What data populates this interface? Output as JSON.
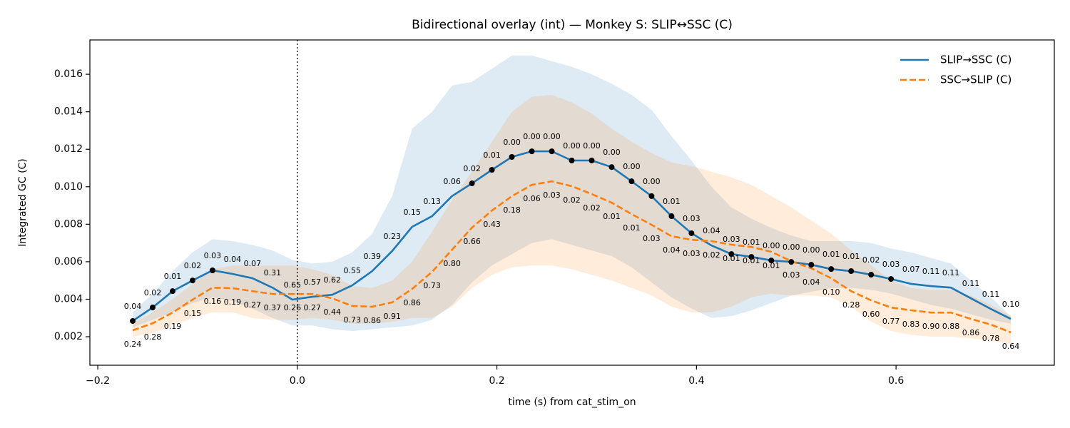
{
  "chart_data": {
    "type": "line",
    "title": "Bidirectional overlay (int) — Monkey S: SLIP↔SSC (C)",
    "xlabel": "time (s) from cat_stim_on",
    "ylabel": "Integrated GC (C)",
    "x": [
      -0.165,
      -0.145,
      -0.125,
      -0.105,
      -0.085,
      -0.065,
      -0.045,
      -0.025,
      -0.005,
      0.015,
      0.035,
      0.055,
      0.075,
      0.095,
      0.115,
      0.135,
      0.155,
      0.175,
      0.195,
      0.215,
      0.235,
      0.255,
      0.275,
      0.295,
      0.315,
      0.335,
      0.355,
      0.375,
      0.395,
      0.415,
      0.435,
      0.455,
      0.475,
      0.495,
      0.515,
      0.535,
      0.555,
      0.575,
      0.595,
      0.615,
      0.635,
      0.655,
      0.675,
      0.695,
      0.715
    ],
    "xlim": [
      -0.2079,
      0.7586
    ],
    "ylim": [
      0.00048,
      0.01783
    ],
    "xticks": [
      {
        "value": -0.2,
        "label": "−0.2"
      },
      {
        "value": 0,
        "label": "0.0"
      },
      0.2,
      0.4,
      0.6
    ],
    "yticks": [
      0.002,
      0.004,
      0.006,
      0.008,
      {
        "value": 0.01,
        "label": "0.010"
      },
      0.012,
      0.014,
      0.016
    ],
    "vline": 0,
    "legend": "upper right",
    "series": [
      {
        "name": "SLIP→SSC (C)",
        "color": "#1f77b4",
        "dash": false,
        "values": [
          0.00284,
          0.00356,
          0.00443,
          0.005,
          0.00554,
          0.00535,
          0.00512,
          0.00462,
          0.00398,
          0.00413,
          0.00424,
          0.00474,
          0.0055,
          0.00657,
          0.00786,
          0.00843,
          0.0095,
          0.01018,
          0.0109,
          0.01159,
          0.01189,
          0.01189,
          0.0114,
          0.0114,
          0.01105,
          0.01029,
          0.0095,
          0.00843,
          0.00752,
          0.00687,
          0.00641,
          0.00626,
          0.00607,
          0.00599,
          0.00584,
          0.00561,
          0.0055,
          0.00531,
          0.00508,
          0.00482,
          0.0047,
          0.00462,
          0.00405,
          0.00348,
          0.00295
        ],
        "upper": [
          0.0033,
          0.0043,
          0.0055,
          0.0065,
          0.0072,
          0.0071,
          0.0069,
          0.0066,
          0.0061,
          0.0059,
          0.006,
          0.0065,
          0.0075,
          0.0095,
          0.0131,
          0.014,
          0.0154,
          0.0156,
          0.0163,
          0.017,
          0.017,
          0.0167,
          0.0164,
          0.016,
          0.0155,
          0.0149,
          0.0141,
          0.0127,
          0.0114,
          0.01,
          0.0089,
          0.0083,
          0.0078,
          0.0074,
          0.0071,
          0.0071,
          0.0071,
          0.007,
          0.0067,
          0.0065,
          0.0062,
          0.0059,
          0.005,
          0.0041,
          0.0031
        ],
        "lower": [
          0.0025,
          0.0029,
          0.0033,
          0.0038,
          0.0041,
          0.0039,
          0.0035,
          0.003,
          0.0026,
          0.0026,
          0.0024,
          0.0023,
          0.0024,
          0.0025,
          0.0026,
          0.0029,
          0.0037,
          0.0049,
          0.0058,
          0.0064,
          0.007,
          0.0072,
          0.0069,
          0.0066,
          0.0063,
          0.0057,
          0.0049,
          0.0041,
          0.0035,
          0.003,
          0.0031,
          0.0034,
          0.0038,
          0.0042,
          0.0044,
          0.0046,
          0.0046,
          0.0045,
          0.0043,
          0.004,
          0.0037,
          0.0035,
          0.0032,
          0.0029,
          0.0027
        ],
        "labels": [
          "0.04",
          "0.02",
          "0.01",
          "0.02",
          "0.03",
          "0.04",
          "0.07",
          "0.31",
          "0.65",
          "0.57",
          "0.62",
          "0.55",
          "0.39",
          "0.23",
          "0.15",
          "0.13",
          "0.06",
          "0.02",
          "0.01",
          "0.00",
          "0.00",
          "0.00",
          "0.00",
          "0.00",
          "0.00",
          "0.00",
          "0.00",
          "0.01",
          "0.03",
          "0.04",
          "0.03",
          "0.01",
          "0.00",
          "0.00",
          "0.00",
          "0.01",
          "0.01",
          "0.02",
          "0.03",
          "0.07",
          "0.11",
          "0.11",
          "0.11",
          "0.11",
          "0.10"
        ],
        "markers": [
          true,
          true,
          true,
          true,
          true,
          false,
          false,
          false,
          false,
          false,
          false,
          false,
          false,
          false,
          false,
          false,
          false,
          true,
          true,
          true,
          true,
          true,
          true,
          true,
          true,
          true,
          true,
          true,
          true,
          false,
          true,
          true,
          true,
          true,
          true,
          true,
          true,
          true,
          true,
          false,
          false,
          false,
          false,
          false,
          false
        ]
      },
      {
        "name": "SSC→SLIP (C)",
        "color": "#ff7f0e",
        "dash": true,
        "values": [
          0.00234,
          0.00272,
          0.00329,
          0.00398,
          0.00462,
          0.00459,
          0.00443,
          0.00428,
          0.00428,
          0.00428,
          0.00405,
          0.00364,
          0.0036,
          0.00383,
          0.00455,
          0.00546,
          0.00664,
          0.00782,
          0.00873,
          0.0095,
          0.0101,
          0.01029,
          0.01003,
          0.00961,
          0.00915,
          0.00854,
          0.00797,
          0.00736,
          0.00717,
          0.0071,
          0.00691,
          0.00679,
          0.00653,
          0.00603,
          0.00565,
          0.00512,
          0.00443,
          0.00394,
          0.00356,
          0.00341,
          0.00329,
          0.00329,
          0.00295,
          0.00265,
          0.00223
        ],
        "upper": [
          0.0027,
          0.0033,
          0.004,
          0.0048,
          0.0056,
          0.0058,
          0.0058,
          0.0058,
          0.0058,
          0.0056,
          0.0053,
          0.0047,
          0.0046,
          0.005,
          0.006,
          0.0076,
          0.0093,
          0.0108,
          0.0124,
          0.014,
          0.0148,
          0.0149,
          0.0145,
          0.0139,
          0.0131,
          0.0124,
          0.0118,
          0.0113,
          0.0111,
          0.0108,
          0.0105,
          0.0101,
          0.0095,
          0.0089,
          0.0082,
          0.0075,
          0.0066,
          0.0058,
          0.005,
          0.0046,
          0.0045,
          0.0045,
          0.0042,
          0.0037,
          0.0031
        ],
        "lower": [
          0.002,
          0.0022,
          0.0026,
          0.003,
          0.0033,
          0.0033,
          0.003,
          0.0029,
          0.0029,
          0.003,
          0.0029,
          0.0027,
          0.0027,
          0.0028,
          0.003,
          0.003,
          0.0036,
          0.0046,
          0.0053,
          0.0057,
          0.0058,
          0.0058,
          0.0056,
          0.0053,
          0.005,
          0.0046,
          0.0042,
          0.0036,
          0.0033,
          0.0033,
          0.0036,
          0.0041,
          0.0043,
          0.0042,
          0.0042,
          0.0041,
          0.0036,
          0.0028,
          0.0023,
          0.0021,
          0.002,
          0.002,
          0.0019,
          0.0018,
          0.0016
        ],
        "labels": [
          "0.24",
          "0.28",
          "0.19",
          "0.15",
          "0.16",
          "0.19",
          "0.27",
          "0.37",
          "0.26",
          "0.27",
          "0.44",
          "0.73",
          "0.86",
          "0.91",
          "0.86",
          "0.73",
          "0.80",
          "0.66",
          "0.43",
          "0.18",
          "0.06",
          "0.03",
          "0.02",
          "0.02",
          "0.01",
          "0.01",
          "0.03",
          "0.04",
          "0.03",
          "0.02",
          "0.01",
          "0.01",
          "0.01",
          "0.03",
          "0.04",
          "0.10",
          "0.28",
          "0.60",
          "0.77",
          "0.83",
          "0.90",
          "0.88",
          "0.86",
          "0.78",
          "0.64"
        ]
      }
    ]
  }
}
